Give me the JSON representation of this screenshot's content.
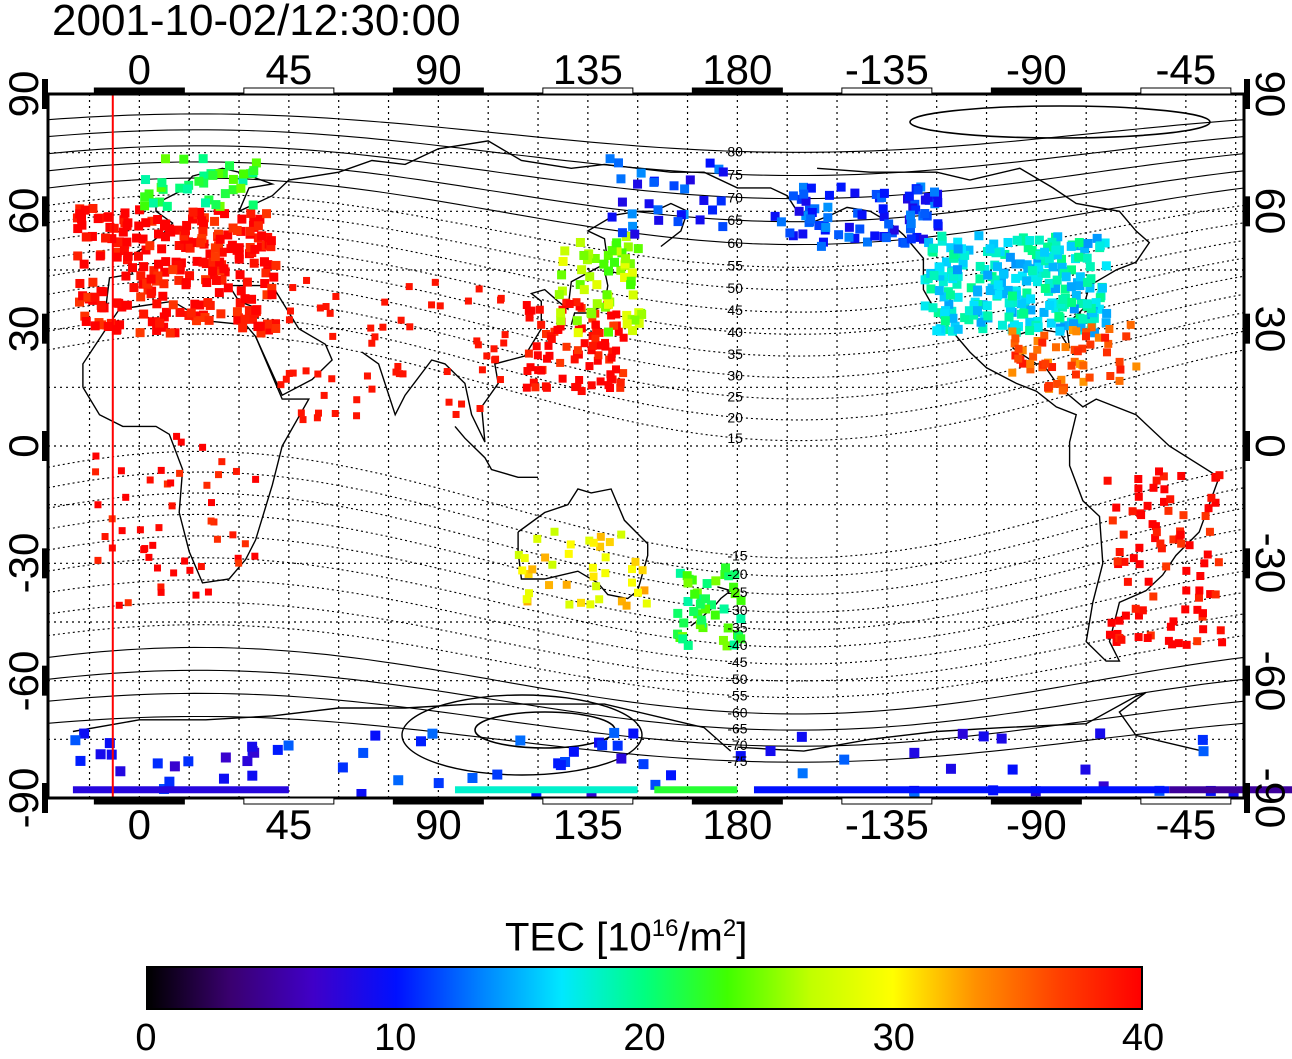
{
  "title": "2001-10-02/12:30:00",
  "top_ticks": [
    "0",
    "45",
    "90",
    "135",
    "180",
    "-135",
    "-90",
    "-45"
  ],
  "bottom_ticks": [
    "0",
    "45",
    "90",
    "135",
    "180",
    "-135",
    "-90",
    "-45"
  ],
  "left_ticks": [
    "90",
    "60",
    "30",
    "0",
    "-30",
    "-60",
    "-90"
  ],
  "right_ticks": [
    "90",
    "60",
    "30",
    "0",
    "-30",
    "-60",
    "-90"
  ],
  "contour_labels_north": [
    "80",
    "75",
    "70",
    "65",
    "60",
    "55",
    "50",
    "45",
    "40",
    "35",
    "30",
    "25",
    "20",
    "15"
  ],
  "contour_labels_south": [
    "-15",
    "-20",
    "-25",
    "-30",
    "-35",
    "-40",
    "-45",
    "-50",
    "-55",
    "-60",
    "-65",
    "-70",
    "-75"
  ],
  "colorbar": {
    "title_main": "TEC  [10",
    "title_exp1": "16",
    "title_mid": "/m",
    "title_exp2": "2",
    "title_end": "]",
    "ticks": [
      "0",
      "10",
      "20",
      "30",
      "40"
    ],
    "range": [
      0,
      40
    ],
    "colors": [
      "#000000",
      "#3a0070",
      "#4000c8",
      "#0010ff",
      "#0080ff",
      "#00e8ff",
      "#00ff80",
      "#40ff00",
      "#c0ff00",
      "#ffff00",
      "#ff9000",
      "#ff4000",
      "#ff0000"
    ]
  },
  "map": {
    "lon_ticks": [
      0,
      45,
      90,
      135,
      180,
      -135,
      -90,
      -45
    ],
    "lat_ticks": [
      90,
      60,
      30,
      0,
      -30,
      -60,
      -90
    ],
    "marker_line_lon": -8,
    "tec_regions": [
      {
        "region": "Europe",
        "tec": 40
      },
      {
        "region": "Scandinavia",
        "tec": 22
      },
      {
        "region": "East Asia",
        "tec": 40
      },
      {
        "region": "Japan",
        "tec": 26
      },
      {
        "region": "Siberia east",
        "tec": 11
      },
      {
        "region": "Alaska",
        "tec": 11
      },
      {
        "region": "North America",
        "tec": 17
      },
      {
        "region": "Gulf of Mexico",
        "tec": 36
      },
      {
        "region": "South America",
        "tec": 40
      },
      {
        "region": "Africa",
        "tec": 40
      },
      {
        "region": "Australia",
        "tec": 30
      },
      {
        "region": "New Zealand",
        "tec": 22
      },
      {
        "region": "Antarctica rim",
        "tec": 10
      }
    ]
  }
}
